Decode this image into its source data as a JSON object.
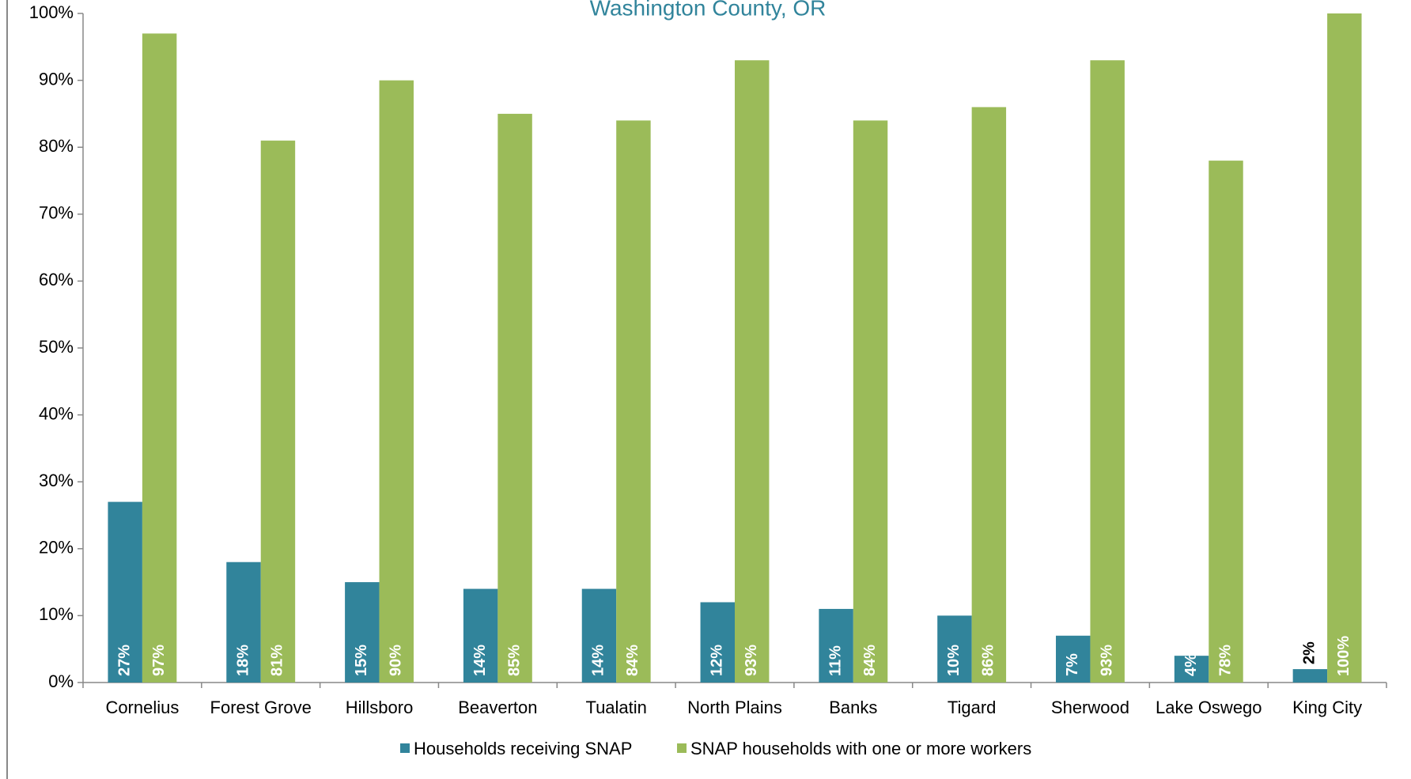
{
  "chart_data": {
    "type": "bar",
    "title": "Washington County, OR",
    "categories": [
      "Cornelius",
      "Forest Grove",
      "Hillsboro",
      "Beaverton",
      "Tualatin",
      "North Plains",
      "Banks",
      "Tigard",
      "Sherwood",
      "Lake Oswego",
      "King City"
    ],
    "series": [
      {
        "name": "Households receiving SNAP",
        "color": "#31849b",
        "values": [
          27,
          18,
          15,
          14,
          14,
          12,
          11,
          10,
          7,
          4,
          2
        ],
        "value_labels": [
          "27%",
          "18%",
          "15%",
          "14%",
          "14%",
          "12%",
          "11%",
          "10%",
          "7%",
          "4%",
          "2%"
        ]
      },
      {
        "name": "SNAP households with one or more workers",
        "color": "#9bbb59",
        "values": [
          97,
          81,
          90,
          85,
          84,
          93,
          84,
          86,
          93,
          78,
          100
        ],
        "value_labels": [
          "97%",
          "81%",
          "90%",
          "85%",
          "84%",
          "93%",
          "84%",
          "86%",
          "93%",
          "78%",
          "100%"
        ]
      }
    ],
    "ylim": [
      0,
      100
    ],
    "yticks": [
      {
        "value": 0,
        "label": "0%"
      },
      {
        "value": 10,
        "label": "10%"
      },
      {
        "value": 20,
        "label": "20%"
      },
      {
        "value": 30,
        "label": "30%"
      },
      {
        "value": 40,
        "label": "40%"
      },
      {
        "value": 50,
        "label": "50%"
      },
      {
        "value": 60,
        "label": "60%"
      },
      {
        "value": 70,
        "label": "70%"
      },
      {
        "value": 80,
        "label": "80%"
      },
      {
        "value": 90,
        "label": "90%"
      },
      {
        "value": 100,
        "label": "100%"
      }
    ],
    "legend": "bottom"
  }
}
